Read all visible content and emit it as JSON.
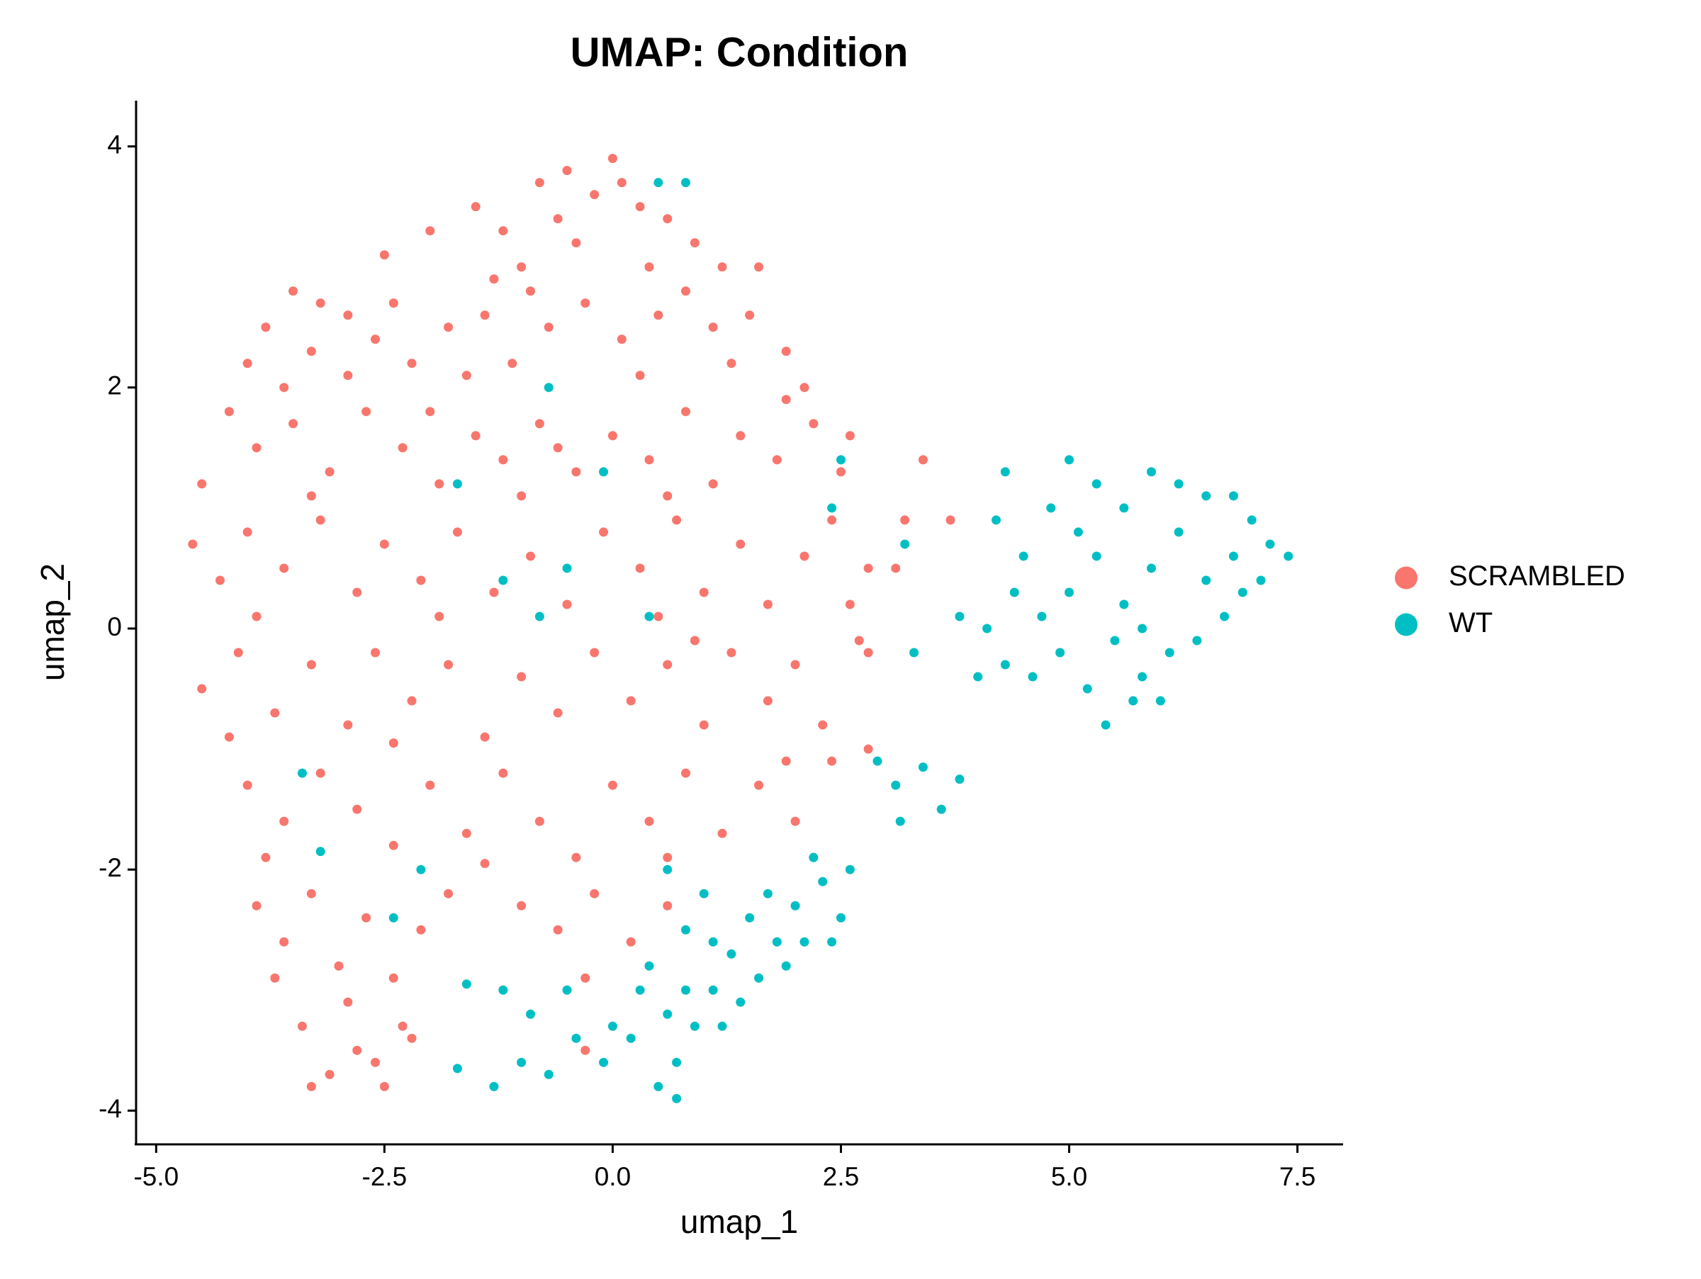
{
  "chart_data": {
    "type": "scatter",
    "title": "UMAP: Condition",
    "x_label": "umap_1",
    "y_label": "umap_2",
    "xlim": [
      -5.22,
      8.0
    ],
    "ylim": [
      -4.28,
      4.38
    ],
    "xticks": [
      {
        "value": -5,
        "label": "-5.0"
      },
      -2.5,
      {
        "value": 0,
        "label": "0.0"
      },
      2.5,
      {
        "value": 5,
        "label": "5.0"
      },
      7.5
    ],
    "yticks": [
      -4,
      -2,
      0,
      2,
      4
    ],
    "grid": false,
    "legend_position": "right",
    "series": [
      {
        "name": "SCRAMBLED",
        "color": "#F8766D",
        "x": [
          -1.5,
          -1.2,
          -0.8,
          -0.5,
          -0.2,
          0.1,
          0.3,
          0.6,
          0.9,
          -1.0,
          -0.4,
          0.0,
          -0.6,
          -1.3,
          1.2,
          1.6,
          -2.0,
          -2.5,
          0.4,
          -3.5,
          -3.2,
          -2.9,
          -3.8,
          -3.3,
          -2.6,
          -2.2,
          -1.8,
          -1.4,
          -1.1,
          -0.7,
          -0.3,
          0.1,
          0.5,
          0.8,
          1.1,
          1.5,
          1.9,
          2.1,
          -4.0,
          -3.6,
          -2.9,
          -0.9,
          0.3,
          1.3,
          -1.6,
          -2.4,
          -4.2,
          -3.9,
          -3.5,
          -3.1,
          -2.7,
          -2.3,
          -1.9,
          -1.5,
          -1.2,
          -0.8,
          -0.4,
          0.0,
          0.4,
          0.8,
          1.1,
          1.4,
          1.8,
          2.2,
          2.5,
          -4.5,
          -2.0,
          -0.6,
          0.6,
          1.9,
          2.6,
          -3.3,
          -1.0,
          3.4,
          -4.6,
          -4.3,
          -4.0,
          -3.6,
          -3.2,
          -2.8,
          -2.5,
          -2.1,
          -1.7,
          -1.3,
          -0.9,
          -0.5,
          -0.1,
          0.3,
          0.7,
          1.0,
          1.4,
          1.7,
          2.1,
          2.4,
          2.6,
          -3.9,
          -1.9,
          0.5,
          3.1,
          3.2,
          3.7,
          2.8,
          -4.5,
          -4.1,
          -3.7,
          -3.3,
          -2.9,
          -2.6,
          -2.2,
          -1.8,
          -1.4,
          -1.0,
          -0.6,
          -0.2,
          0.2,
          0.6,
          1.0,
          1.3,
          1.7,
          2.0,
          2.3,
          2.7,
          -4.2,
          -2.4,
          0.9,
          2.8,
          -4.0,
          -3.6,
          -3.2,
          -2.8,
          -2.4,
          -2.0,
          -1.6,
          -1.2,
          -0.8,
          -0.4,
          0.0,
          0.4,
          0.8,
          1.2,
          1.6,
          2.0,
          2.4,
          -3.8,
          -1.4,
          0.6,
          2.2,
          1.9,
          2.8,
          -3.9,
          -3.6,
          -3.3,
          -3.0,
          -2.7,
          -2.4,
          -2.1,
          -1.8,
          -1.0,
          -0.6,
          -0.2,
          0.2,
          0.6,
          -0.3,
          -3.7,
          -3.4,
          -3.1,
          -2.8,
          -2.5,
          -2.3,
          -2.9,
          -3.3,
          -2.6,
          -2.2,
          -0.3
        ],
        "values": [
          3.5,
          3.3,
          3.7,
          3.8,
          3.6,
          3.7,
          3.5,
          3.4,
          3.2,
          3.0,
          3.2,
          3.9,
          3.4,
          2.9,
          3.0,
          3.0,
          3.3,
          3.1,
          3.0,
          2.8,
          2.7,
          2.6,
          2.5,
          2.3,
          2.4,
          2.2,
          2.5,
          2.6,
          2.2,
          2.5,
          2.7,
          2.4,
          2.6,
          2.8,
          2.5,
          2.6,
          2.3,
          2.0,
          2.2,
          2.0,
          2.1,
          2.8,
          2.1,
          2.2,
          2.1,
          2.7,
          1.8,
          1.5,
          1.7,
          1.3,
          1.8,
          1.5,
          1.2,
          1.6,
          1.4,
          1.7,
          1.3,
          1.6,
          1.4,
          1.8,
          1.2,
          1.6,
          1.4,
          1.7,
          1.3,
          1.2,
          1.8,
          1.5,
          1.1,
          1.9,
          1.6,
          1.1,
          1.1,
          1.4,
          0.7,
          0.4,
          0.8,
          0.5,
          0.9,
          0.3,
          0.7,
          0.4,
          0.8,
          0.3,
          0.6,
          0.2,
          0.8,
          0.5,
          0.9,
          0.3,
          0.7,
          0.2,
          0.6,
          0.9,
          0.2,
          0.1,
          0.1,
          0.1,
          0.5,
          0.9,
          0.9,
          0.5,
          -0.5,
          -0.2,
          -0.7,
          -0.3,
          -0.8,
          -0.2,
          -0.6,
          -0.3,
          -0.9,
          -0.4,
          -0.7,
          -0.2,
          -0.6,
          -0.3,
          -0.8,
          -0.2,
          -0.6,
          -0.3,
          -0.8,
          -0.1,
          -0.9,
          -0.95,
          -0.1,
          -0.2,
          -1.3,
          -1.6,
          -1.2,
          -1.5,
          -1.8,
          -1.3,
          -1.7,
          -1.2,
          -1.6,
          -1.9,
          -1.3,
          -1.6,
          -1.2,
          -1.7,
          -1.3,
          -1.6,
          -1.1,
          -1.9,
          -1.95,
          -1.9,
          -1.9,
          -1.1,
          -1.0,
          -2.3,
          -2.6,
          -2.2,
          -2.8,
          -2.4,
          -2.9,
          -2.5,
          -2.2,
          -2.3,
          -2.5,
          -2.2,
          -2.6,
          -2.3,
          -2.9,
          -2.9,
          -3.3,
          -3.7,
          -3.5,
          -3.8,
          -3.3,
          -3.1,
          -3.8,
          -3.6,
          -3.4,
          -3.5
        ]
      },
      {
        "name": "WT",
        "color": "#00BFC4",
        "x": [
          4.2,
          4.5,
          4.8,
          5.0,
          5.3,
          5.6,
          5.9,
          6.2,
          6.5,
          6.8,
          7.0,
          7.2,
          7.4,
          7.1,
          6.8,
          6.5,
          6.2,
          5.9,
          5.6,
          5.3,
          5.0,
          4.7,
          4.4,
          4.1,
          4.3,
          4.6,
          4.9,
          5.2,
          5.5,
          5.8,
          6.1,
          6.4,
          6.7,
          5.7,
          5.4,
          6.0,
          3.8,
          4.0,
          5.1,
          6.9,
          5.8,
          4.3,
          3.2,
          3.3,
          3.1,
          3.4,
          3.6,
          3.8,
          3.15,
          2.9,
          -1.3,
          -1.0,
          -0.7,
          -0.4,
          -0.1,
          0.2,
          0.5,
          0.7,
          0.9,
          1.1,
          1.3,
          0.8,
          1.0,
          1.5,
          1.8,
          2.0,
          2.3,
          2.5,
          2.6,
          2.2,
          1.9,
          1.6,
          1.4,
          0.6,
          0.3,
          0.0,
          -0.5,
          -0.9,
          -1.2,
          -1.6,
          -1.7,
          0.4,
          0.8,
          1.2,
          0.7,
          2.1,
          2.4,
          0.6,
          1.1,
          1.7,
          -0.7,
          -1.7,
          -0.1,
          0.8,
          0.5,
          -0.5,
          0.4,
          -0.8,
          2.5,
          -3.4,
          -3.2,
          -2.1,
          -2.4,
          -1.2,
          2.4
        ],
        "values": [
          0.9,
          0.6,
          1.0,
          1.4,
          1.2,
          1.0,
          1.3,
          1.2,
          1.1,
          1.1,
          0.9,
          0.7,
          0.6,
          0.4,
          0.6,
          0.4,
          0.8,
          0.5,
          0.2,
          0.6,
          0.3,
          0.1,
          0.3,
          0.0,
          -0.3,
          -0.4,
          -0.2,
          -0.5,
          -0.1,
          -0.4,
          -0.2,
          -0.1,
          0.1,
          -0.6,
          -0.8,
          -0.6,
          0.1,
          -0.4,
          0.8,
          0.3,
          0.0,
          1.3,
          0.7,
          -0.2,
          -1.3,
          -1.15,
          -1.5,
          -1.25,
          -1.6,
          -1.1,
          -3.8,
          -3.6,
          -3.7,
          -3.4,
          -3.6,
          -3.4,
          -3.8,
          -3.6,
          -3.3,
          -3.0,
          -2.7,
          -2.5,
          -2.2,
          -2.4,
          -2.6,
          -2.3,
          -2.1,
          -2.4,
          -2.0,
          -1.9,
          -2.8,
          -2.9,
          -3.1,
          -3.2,
          -3.0,
          -3.3,
          -3.0,
          -3.2,
          -3.0,
          -2.95,
          -3.65,
          -2.8,
          -3.0,
          -3.3,
          -3.9,
          -2.6,
          -2.6,
          -2.0,
          -2.6,
          -2.2,
          2.0,
          1.2,
          1.3,
          3.7,
          3.7,
          0.5,
          0.1,
          0.1,
          1.4,
          -1.2,
          -1.85,
          -2.0,
          -2.4,
          0.4,
          1.0
        ]
      }
    ]
  }
}
